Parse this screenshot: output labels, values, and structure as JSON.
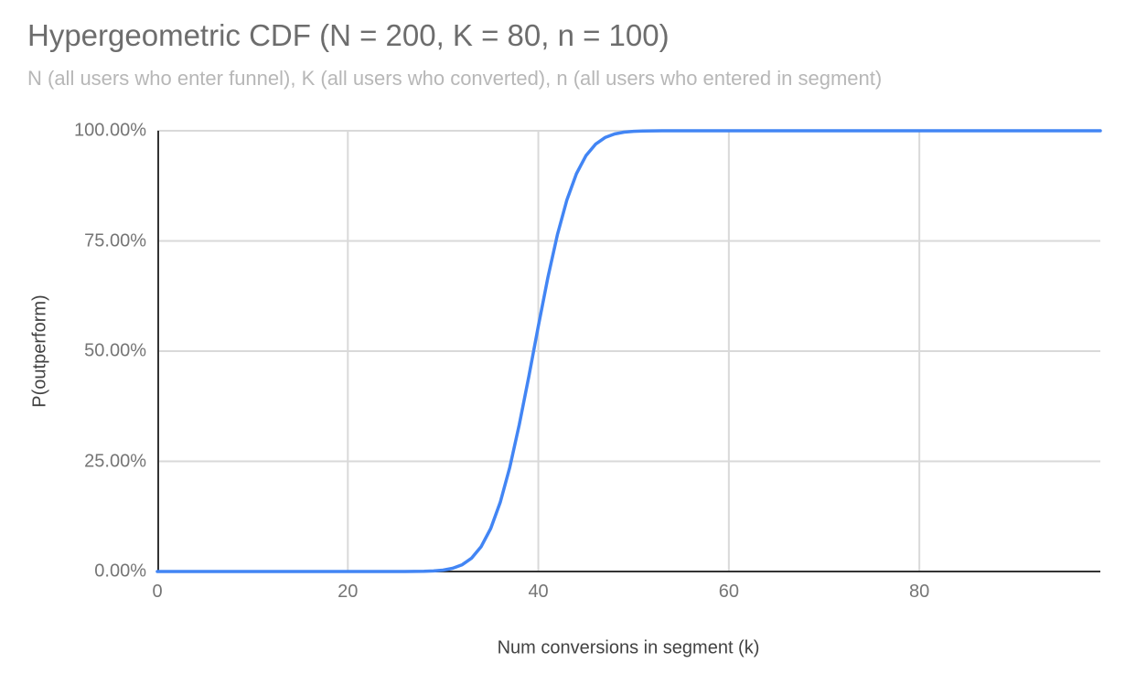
{
  "chart_data": {
    "type": "line",
    "title": "Hypergeometric CDF (N = 200, K = 80, n = 100)",
    "subtitle": "N (all users who enter funnel), K (all users who converted), n (all users who entered in segment)",
    "xlabel": "Num conversions in segment (k)",
    "ylabel": "P(outperform)",
    "xlim": [
      0,
      99
    ],
    "ylim": [
      0,
      100
    ],
    "grid": true,
    "legend": "none",
    "parameters": {
      "N": 200,
      "K": 80,
      "n": 100
    },
    "x_ticks": [
      {
        "value": 0,
        "label": "0"
      },
      {
        "value": 20,
        "label": "20"
      },
      {
        "value": 40,
        "label": "40"
      },
      {
        "value": 60,
        "label": "60"
      },
      {
        "value": 80,
        "label": "80"
      }
    ],
    "y_ticks": [
      {
        "value": 0,
        "label": "0.00%"
      },
      {
        "value": 25,
        "label": "25.00%"
      },
      {
        "value": 50,
        "label": "50.00%"
      },
      {
        "value": 75,
        "label": "75.00%"
      },
      {
        "value": 100,
        "label": "100.00%"
      }
    ],
    "series": [
      {
        "name": "Hypergeometric CDF",
        "color": "#4285f4",
        "x_start": 0,
        "x_step": 1,
        "values": [
          0,
          0,
          0,
          0,
          0,
          0,
          0,
          0,
          0,
          0,
          0,
          0,
          0,
          0,
          0,
          0,
          0,
          0,
          0,
          0,
          0,
          0,
          0,
          0,
          0,
          0,
          0.01,
          0.02,
          0.05,
          0.12,
          0.31,
          0.72,
          1.54,
          3.06,
          5.66,
          9.75,
          15.68,
          23.58,
          33.29,
          44.28,
          55.72,
          66.71,
          76.42,
          84.32,
          90.25,
          94.34,
          96.94,
          98.46,
          99.28,
          99.69,
          99.88,
          99.95,
          99.98,
          99.99,
          100,
          100,
          100,
          100,
          100,
          100,
          100,
          100,
          100,
          100,
          100,
          100,
          100,
          100,
          100,
          100,
          100,
          100,
          100,
          100,
          100,
          100,
          100,
          100,
          100,
          100,
          100,
          100,
          100,
          100,
          100,
          100,
          100,
          100,
          100,
          100,
          100,
          100,
          100,
          100,
          100,
          100,
          100,
          100,
          100,
          100
        ]
      }
    ],
    "colors": {
      "line": "#4285f4",
      "gridline": "#d9d9d9",
      "axis": "#333333",
      "title_text": "#6d6d6d",
      "subtitle_text": "#b7b7b7",
      "tick_text": "#757575",
      "axis_title_text": "#424242",
      "background": "#ffffff"
    }
  }
}
